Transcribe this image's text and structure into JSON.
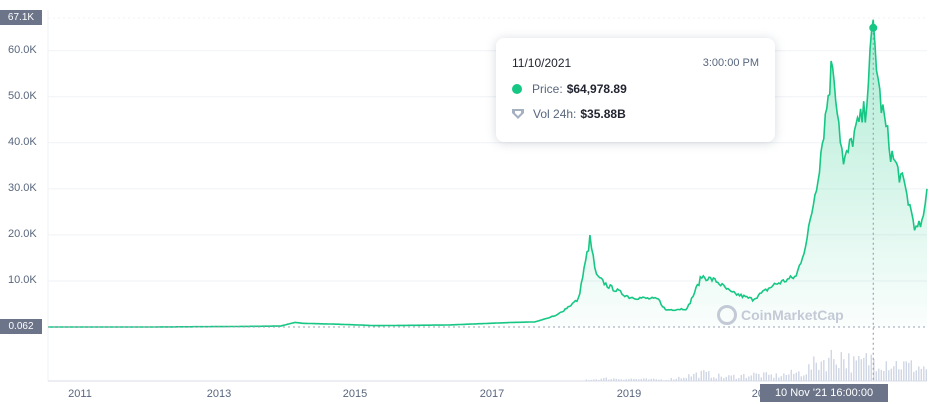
{
  "colors": {
    "price_line": "#16c784",
    "volume_bar": "#cfd6e4",
    "grid": "#eff2f5",
    "axis_flag": "#6b7488"
  },
  "y_axis": {
    "ticks": [
      "60.0K",
      "50.0K",
      "40.0K",
      "30.0K",
      "20.0K",
      "10.0K"
    ],
    "top_flag": "67.1K",
    "current_flag": "0.062"
  },
  "x_axis": {
    "ticks": [
      "2011",
      "2013",
      "2015",
      "2017",
      "2019",
      "2021"
    ],
    "hover_date_label": "10 Nov '21 16:00:00"
  },
  "tooltip": {
    "date": "11/10/2021",
    "time": "3:00:00 PM",
    "price_label": "Price:",
    "price_value": "$64,978.89",
    "volume_label": "Vol 24h:",
    "volume_value": "$35.88B",
    "price_icon": "green-dot-icon",
    "volume_icon": "volume-shield-icon"
  },
  "watermark": "CoinMarketCap",
  "chart_data": {
    "type": "area",
    "title": "",
    "xlabel": "",
    "ylabel": "",
    "xlim": [
      2010.5,
      2022.6
    ],
    "ylim": [
      0,
      67100
    ],
    "grid": true,
    "series": [
      {
        "name": "Price",
        "x": [
          2010.5,
          2011.0,
          2012.0,
          2013.0,
          2013.7,
          2013.9,
          2014.0,
          2014.5,
          2015.0,
          2016.0,
          2016.9,
          2017.2,
          2017.5,
          2017.8,
          2017.96,
          2018.05,
          2018.2,
          2018.5,
          2018.9,
          2019.0,
          2019.3,
          2019.5,
          2019.7,
          2019.9,
          2020.2,
          2020.5,
          2020.8,
          2020.95,
          2021.1,
          2021.3,
          2021.45,
          2021.6,
          2021.75,
          2021.86,
          2021.95,
          2022.1,
          2022.3,
          2022.45,
          2022.55,
          2022.6
        ],
        "values": [
          0.062,
          1,
          10,
          100,
          200,
          1000,
          800,
          600,
          300,
          430,
          1000,
          1100,
          2500,
          6000,
          19000,
          11000,
          9000,
          6500,
          6000,
          3700,
          4000,
          11000,
          10000,
          7500,
          6000,
          9200,
          11000,
          19000,
          33000,
          58000,
          35000,
          42000,
          47000,
          64978.89,
          50000,
          38000,
          30000,
          21000,
          23000,
          30000
        ]
      },
      {
        "name": "Vol 24h",
        "x": [
          2017.9,
          2018.2,
          2018.6,
          2019.0,
          2019.3,
          2019.5,
          2019.8,
          2020.2,
          2020.5,
          2020.9,
          2021.1,
          2021.4,
          2021.6,
          2021.86,
          2022.1,
          2022.3,
          2022.6
        ],
        "values": [
          2,
          4,
          3,
          2,
          8,
          12,
          6,
          10,
          8,
          14,
          30,
          40,
          25,
          35.88,
          28,
          24,
          20
        ]
      }
    ],
    "hover": {
      "x": 2021.86,
      "price": 64978.89,
      "volume": 35.88
    }
  }
}
